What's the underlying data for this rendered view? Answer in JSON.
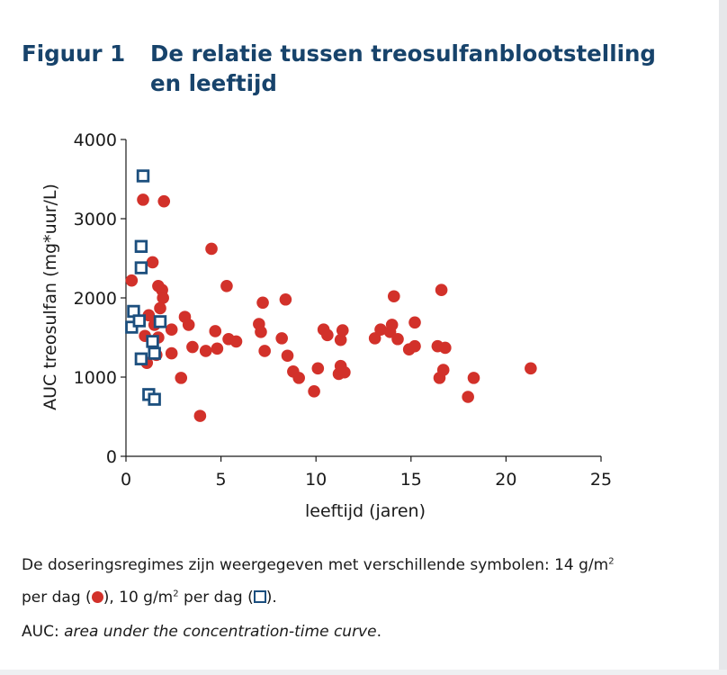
{
  "figure": {
    "label": "Figuur 1",
    "title": "De relatie tussen treosulfanblootstelling en leeftijd"
  },
  "colors": {
    "header": "#17436b",
    "series_circle": "#d2312a",
    "series_square": "#1c4f7e"
  },
  "chart_data": {
    "type": "scatter",
    "xlabel": "leeftijd (jaren)",
    "ylabel": "AUC treosulfan (mg*uur/L)",
    "xlim": [
      0,
      25
    ],
    "ylim": [
      0,
      4000
    ],
    "xticks": [
      0,
      5,
      10,
      15,
      20,
      25
    ],
    "yticks": [
      0,
      1000,
      2000,
      3000,
      4000
    ],
    "grid": false,
    "series": [
      {
        "marker": "circle",
        "color": "#d2312a",
        "points": [
          [
            0.3,
            2220
          ],
          [
            0.9,
            3240
          ],
          [
            2.0,
            3220
          ],
          [
            1.4,
            2450
          ],
          [
            4.5,
            2620
          ],
          [
            1.7,
            2150
          ],
          [
            1.9,
            2100
          ],
          [
            1.95,
            2000
          ],
          [
            5.3,
            2150
          ],
          [
            1.2,
            1780
          ],
          [
            1.8,
            1870
          ],
          [
            1.5,
            1660
          ],
          [
            1.0,
            1520
          ],
          [
            1.7,
            1500
          ],
          [
            1.1,
            1180
          ],
          [
            1.6,
            1280
          ],
          [
            2.4,
            1600
          ],
          [
            3.1,
            1760
          ],
          [
            3.3,
            1660
          ],
          [
            3.5,
            1380
          ],
          [
            2.4,
            1300
          ],
          [
            2.9,
            990
          ],
          [
            3.9,
            510
          ],
          [
            4.2,
            1330
          ],
          [
            4.7,
            1580
          ],
          [
            4.8,
            1360
          ],
          [
            5.4,
            1480
          ],
          [
            5.8,
            1450
          ],
          [
            7.0,
            1670
          ],
          [
            7.1,
            1570
          ],
          [
            7.2,
            1940
          ],
          [
            7.3,
            1330
          ],
          [
            8.2,
            1490
          ],
          [
            8.4,
            1980
          ],
          [
            8.5,
            1270
          ],
          [
            8.8,
            1070
          ],
          [
            9.1,
            990
          ],
          [
            9.9,
            820
          ],
          [
            10.1,
            1110
          ],
          [
            10.4,
            1600
          ],
          [
            10.6,
            1530
          ],
          [
            11.2,
            1040
          ],
          [
            11.3,
            1140
          ],
          [
            11.3,
            1470
          ],
          [
            11.4,
            1590
          ],
          [
            11.5,
            1060
          ],
          [
            13.1,
            1490
          ],
          [
            13.4,
            1600
          ],
          [
            13.9,
            1570
          ],
          [
            14.0,
            1660
          ],
          [
            14.1,
            2020
          ],
          [
            14.3,
            1480
          ],
          [
            14.9,
            1350
          ],
          [
            15.2,
            1690
          ],
          [
            15.2,
            1390
          ],
          [
            16.4,
            1390
          ],
          [
            16.5,
            990
          ],
          [
            16.6,
            2100
          ],
          [
            16.7,
            1090
          ],
          [
            16.8,
            1370
          ],
          [
            18.0,
            750
          ],
          [
            18.3,
            990
          ],
          [
            21.3,
            1110
          ]
        ]
      },
      {
        "marker": "square",
        "color": "#1c4f7e",
        "points": [
          [
            0.9,
            3540
          ],
          [
            0.8,
            2650
          ],
          [
            0.8,
            2380
          ],
          [
            0.4,
            1830
          ],
          [
            0.3,
            1630
          ],
          [
            0.7,
            1710
          ],
          [
            1.8,
            1700
          ],
          [
            1.4,
            1450
          ],
          [
            1.5,
            1300
          ],
          [
            0.8,
            1230
          ],
          [
            1.2,
            780
          ],
          [
            1.5,
            720
          ]
        ]
      }
    ]
  },
  "caption": {
    "line1_pre": "De doseringsregimes zijn weergegeven met verschillende symbolen: 14 g/m",
    "sup": "2",
    "line2_a": "per dag (",
    "line2_b": "), 10 g/m",
    "line2_c": " per dag (",
    "line2_d": ").",
    "line3_label": "AUC: ",
    "line3_term": "area under the concentration-time curve",
    "line3_end": "."
  }
}
